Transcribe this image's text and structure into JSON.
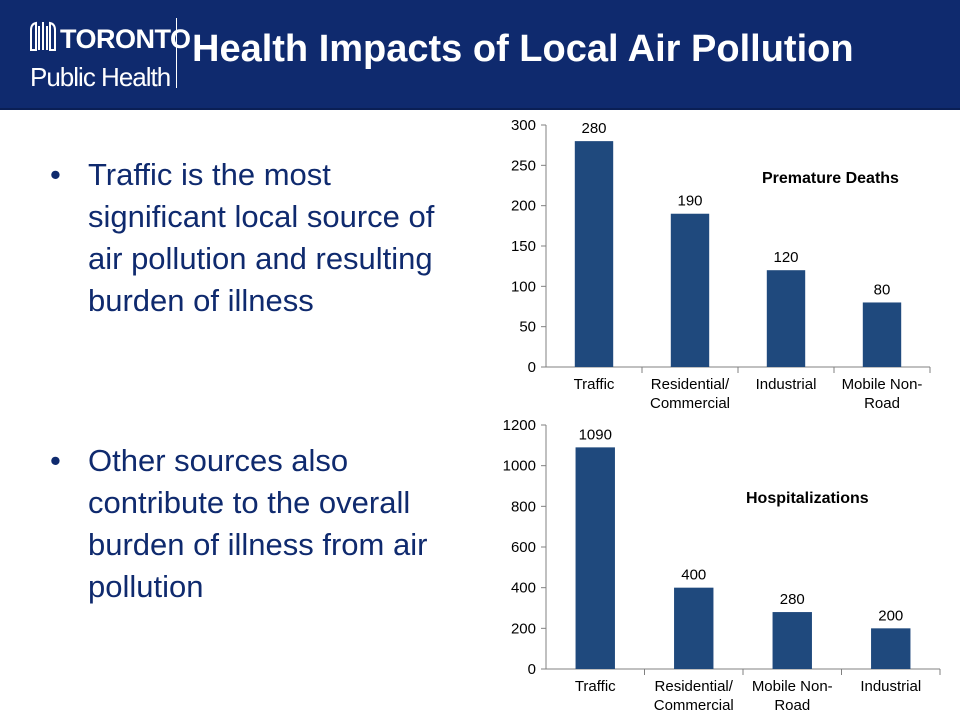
{
  "header": {
    "logo_text_top": "TORONTO",
    "logo_text_bottom": "Public Health",
    "title": "Health Impacts of Local Air Pollution",
    "background": "#0f2a6e"
  },
  "bullets": [
    {
      "marker": "•",
      "text": "Traffic is the most significant local source of air pollution and resulting burden of illness"
    },
    {
      "marker": "•",
      "text": "Other sources also contribute to the overall burden of illness from air pollution"
    }
  ],
  "chart_data": [
    {
      "type": "bar",
      "title": "Premature Deaths",
      "categories": [
        [
          "Traffic"
        ],
        [
          "Residential/",
          "Commercial"
        ],
        [
          "Industrial"
        ],
        [
          "Mobile Non-",
          "Road"
        ]
      ],
      "values": [
        280,
        190,
        120,
        80
      ],
      "ylim": [
        0,
        300
      ],
      "yticks": [
        0,
        50,
        100,
        150,
        200,
        250,
        300
      ],
      "bar_color": "#1f497d",
      "grid": false,
      "legend": "none"
    },
    {
      "type": "bar",
      "title": "Hospitalizations",
      "categories": [
        [
          "Traffic"
        ],
        [
          "Residential/",
          "Commercial"
        ],
        [
          "Mobile Non-",
          "Road"
        ],
        [
          "Industrial"
        ]
      ],
      "values": [
        1090,
        400,
        280,
        200
      ],
      "ylim": [
        0,
        1200
      ],
      "yticks": [
        0,
        200,
        400,
        600,
        800,
        1000,
        1200
      ],
      "bar_color": "#1f497d",
      "grid": false,
      "legend": "none"
    }
  ]
}
